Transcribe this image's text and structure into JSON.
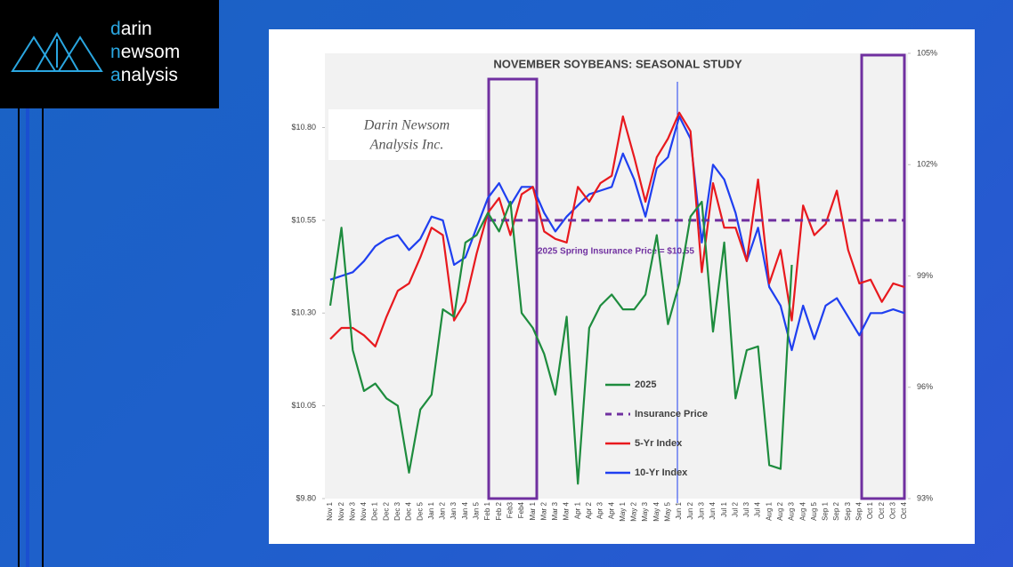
{
  "logo": [
    "darin",
    "newsom",
    "analysis"
  ],
  "watermark": [
    "Darin Newsom",
    "Analysis Inc."
  ],
  "chart_data": {
    "type": "line",
    "title": "NOVEMBER SOYBEANS: SEASONAL STUDY",
    "annotation": "2025 Spring Insurance Price = $10.55",
    "categories": [
      "Nov 1",
      "Nov 2",
      "Nov 3",
      "Nov 4",
      "Dec 1",
      "Dec 2",
      "Dec 3",
      "Dec 4",
      "Dec 5",
      "Jan 1",
      "Jan 2",
      "Jan 3",
      "Jan 4",
      "Jan 5",
      "Feb 1",
      "Feb 2",
      "Feb3",
      "Feb4",
      "Mar 1",
      "Mar 2",
      "Mar 3",
      "Mar 4",
      "Apr 1",
      "Apr 2",
      "Apr 3",
      "Apr 4",
      "May 1",
      "May 2",
      "May 3",
      "May 4",
      "May 5",
      "Jun 1",
      "Jun 2",
      "Jun 3",
      "Jun 4",
      "Jul 1",
      "Jul 2",
      "Jul 3",
      "Jul 4",
      "Aug 1",
      "Aug 2",
      "Aug 3",
      "Aug 4",
      "Aug 5",
      "Sep 1",
      "Sep 2",
      "Sep 3",
      "Sep 4",
      "Oct 1",
      "Oct 2",
      "Oct 3",
      "Oct 4"
    ],
    "ylim": [
      9.8,
      11.0
    ],
    "yticks": [
      {
        "value": 9.8,
        "label": "$9.80"
      },
      {
        "value": 10.05,
        "label": "$10.05"
      },
      {
        "value": 10.3,
        "label": "$10.30"
      },
      {
        "value": 10.55,
        "label": "$10.55"
      },
      {
        "value": 10.8,
        "label": "$10.80"
      }
    ],
    "y2lim": [
      93,
      105
    ],
    "y2ticks": [
      {
        "value": 93,
        "label": "93%"
      },
      {
        "value": 96,
        "label": "96%"
      },
      {
        "value": 99,
        "label": "99%"
      },
      {
        "value": 102,
        "label": "102%"
      },
      {
        "value": 105,
        "label": "105%"
      }
    ],
    "series": [
      {
        "name": "2025",
        "color": "#1e8c3e",
        "dashed": false,
        "axis": "y",
        "values": [
          10.32,
          10.53,
          10.2,
          10.09,
          10.11,
          10.07,
          10.05,
          9.87,
          10.04,
          10.08,
          10.31,
          10.29,
          10.49,
          10.51,
          10.57,
          10.52,
          10.6,
          10.3,
          10.26,
          10.19,
          10.08,
          10.29,
          9.84,
          10.26,
          10.32,
          10.35,
          10.31,
          10.31,
          10.35,
          10.51,
          10.27,
          10.38,
          10.56,
          10.6,
          10.25,
          10.49,
          10.07,
          10.2,
          10.21,
          9.89,
          9.88,
          10.43,
          null,
          null,
          null,
          null,
          null,
          null,
          null,
          null,
          null,
          null
        ]
      },
      {
        "name": "Insurance Price",
        "color": "#7030a0",
        "dashed": true,
        "axis": "y",
        "values": [
          null,
          null,
          null,
          null,
          null,
          null,
          null,
          null,
          null,
          null,
          null,
          null,
          null,
          null,
          10.55,
          10.55,
          10.55,
          10.55,
          10.55,
          10.55,
          10.55,
          10.55,
          10.55,
          10.55,
          10.55,
          10.55,
          10.55,
          10.55,
          10.55,
          10.55,
          10.55,
          10.55,
          10.55,
          10.55,
          10.55,
          10.55,
          10.55,
          10.55,
          10.55,
          10.55,
          10.55,
          10.55,
          10.55,
          10.55,
          10.55,
          10.55,
          10.55,
          10.55,
          10.55,
          10.55,
          10.55,
          10.55
        ]
      },
      {
        "name": "5-Yr Index",
        "color": "#e8191e",
        "dashed": false,
        "axis": "y2",
        "values": [
          97.3,
          97.6,
          97.6,
          97.4,
          97.1,
          97.9,
          98.6,
          98.8,
          99.5,
          100.3,
          100.1,
          97.8,
          98.3,
          99.6,
          100.7,
          101.1,
          100.1,
          101.2,
          101.4,
          100.2,
          100.0,
          99.9,
          101.4,
          101.0,
          101.5,
          101.7,
          103.3,
          102.2,
          101.0,
          102.2,
          102.7,
          103.4,
          102.9,
          99.1,
          101.5,
          100.3,
          100.3,
          99.4,
          101.6,
          98.8,
          99.7,
          97.8,
          100.9,
          100.1,
          100.4,
          101.3,
          99.7,
          98.8,
          98.9,
          98.3,
          98.8,
          98.7
        ]
      },
      {
        "name": "10-Yr Index",
        "color": "#1f3ff0",
        "dashed": false,
        "axis": "y2",
        "values": [
          98.9,
          99.0,
          99.1,
          99.4,
          99.8,
          100.0,
          100.1,
          99.7,
          100.0,
          100.6,
          100.5,
          99.3,
          99.5,
          100.3,
          101.1,
          101.5,
          100.9,
          101.4,
          101.4,
          100.7,
          100.2,
          100.6,
          100.9,
          101.2,
          101.3,
          101.4,
          102.3,
          101.6,
          100.6,
          101.9,
          102.2,
          103.3,
          102.7,
          99.9,
          102.0,
          101.6,
          100.7,
          99.4,
          100.3,
          98.7,
          98.2,
          97.0,
          98.2,
          97.3,
          98.2,
          98.4,
          97.9,
          97.4,
          98.0,
          98.0,
          98.1,
          98.0
        ]
      }
    ]
  }
}
